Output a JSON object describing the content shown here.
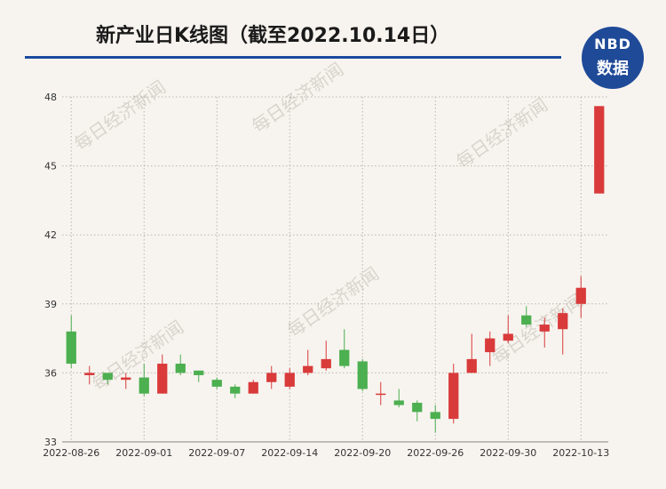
{
  "header": {
    "title": "新产业日K线图（截至2022.10.14日）"
  },
  "logo": {
    "top_text": "NBD",
    "bottom_text": "数据",
    "color": "#1f4a98"
  },
  "watermark": {
    "text": "每日经济新闻"
  },
  "chart_data": {
    "type": "candlestick",
    "title": "新产业日K线图（截至2022.10.14日）",
    "ylim": [
      33,
      48
    ],
    "yticks": [
      33,
      36,
      39,
      42,
      45,
      48
    ],
    "grid": true,
    "up_color": "#d93a3a",
    "down_color": "#4caf50",
    "x_tick_labels": [
      "2022-08-26",
      "2022-09-01",
      "2022-09-07",
      "2022-09-14",
      "2022-09-20",
      "2022-09-26",
      "2022-09-30",
      "2022-10-13"
    ],
    "candles": [
      {
        "date": "2022-08-26",
        "open": 37.8,
        "close": 36.4,
        "high": 38.5,
        "low": 36.2
      },
      {
        "date": "2022-08-29",
        "open": 35.9,
        "close": 36.0,
        "high": 36.3,
        "low": 35.5
      },
      {
        "date": "2022-08-30",
        "open": 36.0,
        "close": 35.7,
        "high": 36.0,
        "low": 35.5
      },
      {
        "date": "2022-08-31",
        "open": 35.7,
        "close": 35.8,
        "high": 36.0,
        "low": 35.3
      },
      {
        "date": "2022-09-01",
        "open": 35.8,
        "close": 35.1,
        "high": 36.4,
        "low": 35.0
      },
      {
        "date": "2022-09-02",
        "open": 35.1,
        "close": 36.4,
        "high": 36.8,
        "low": 35.1
      },
      {
        "date": "2022-09-05",
        "open": 36.4,
        "close": 36.0,
        "high": 36.8,
        "low": 35.9
      },
      {
        "date": "2022-09-06",
        "open": 36.1,
        "close": 35.9,
        "high": 36.1,
        "low": 35.6
      },
      {
        "date": "2022-09-07",
        "open": 35.7,
        "close": 35.4,
        "high": 35.8,
        "low": 35.3
      },
      {
        "date": "2022-09-08",
        "open": 35.4,
        "close": 35.1,
        "high": 35.5,
        "low": 34.9
      },
      {
        "date": "2022-09-09",
        "open": 35.1,
        "close": 35.6,
        "high": 35.7,
        "low": 35.1
      },
      {
        "date": "2022-09-13",
        "open": 35.6,
        "close": 36.0,
        "high": 36.3,
        "low": 35.3
      },
      {
        "date": "2022-09-14",
        "open": 35.4,
        "close": 36.0,
        "high": 36.2,
        "low": 35.3
      },
      {
        "date": "2022-09-15",
        "open": 36.0,
        "close": 36.3,
        "high": 37.0,
        "low": 35.9
      },
      {
        "date": "2022-09-16",
        "open": 36.2,
        "close": 36.6,
        "high": 37.4,
        "low": 36.1
      },
      {
        "date": "2022-09-19",
        "open": 37.0,
        "close": 36.3,
        "high": 37.9,
        "low": 36.2
      },
      {
        "date": "2022-09-20",
        "open": 36.5,
        "close": 35.3,
        "high": 36.6,
        "low": 35.2
      },
      {
        "date": "2022-09-21",
        "open": 35.1,
        "close": 35.1,
        "high": 35.6,
        "low": 34.6
      },
      {
        "date": "2022-09-22",
        "open": 34.8,
        "close": 34.6,
        "high": 35.3,
        "low": 34.5
      },
      {
        "date": "2022-09-23",
        "open": 34.7,
        "close": 34.3,
        "high": 34.8,
        "low": 33.9
      },
      {
        "date": "2022-09-26",
        "open": 34.3,
        "close": 34.0,
        "high": 34.6,
        "low": 33.4
      },
      {
        "date": "2022-09-27",
        "open": 34.0,
        "close": 36.0,
        "high": 36.4,
        "low": 33.8
      },
      {
        "date": "2022-09-28",
        "open": 36.0,
        "close": 36.6,
        "high": 37.7,
        "low": 36.0
      },
      {
        "date": "2022-09-29",
        "open": 36.9,
        "close": 37.5,
        "high": 37.8,
        "low": 36.3
      },
      {
        "date": "2022-09-30",
        "open": 37.4,
        "close": 37.7,
        "high": 38.5,
        "low": 37.3
      },
      {
        "date": "2022-10-10",
        "open": 38.5,
        "close": 38.1,
        "high": 38.9,
        "low": 38.0
      },
      {
        "date": "2022-10-11",
        "open": 37.8,
        "close": 38.1,
        "high": 38.4,
        "low": 37.1
      },
      {
        "date": "2022-10-12",
        "open": 37.9,
        "close": 38.6,
        "high": 38.8,
        "low": 36.8
      },
      {
        "date": "2022-10-13",
        "open": 39.0,
        "close": 39.7,
        "high": 40.2,
        "low": 38.4
      },
      {
        "date": "2022-10-14",
        "open": 43.8,
        "close": 47.6,
        "high": 47.6,
        "low": 43.8
      }
    ]
  }
}
